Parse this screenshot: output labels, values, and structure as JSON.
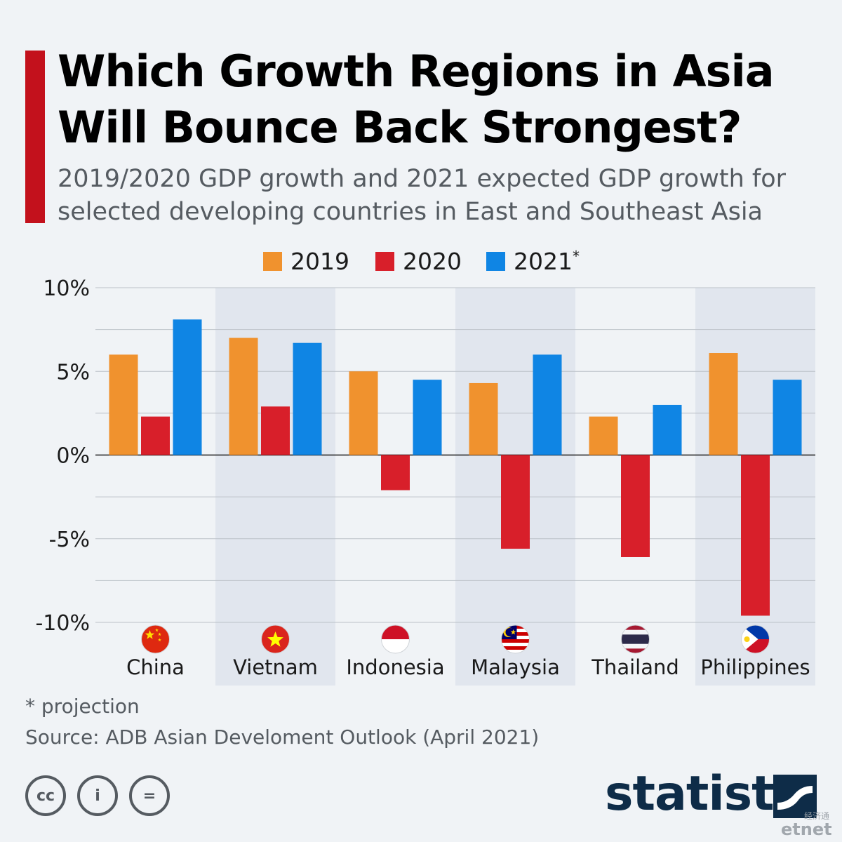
{
  "title": "Which Growth Regions in Asia Will Bounce Back Strongest?",
  "subtitle": "2019/2020 GDP growth and 2021 expected GDP growth for selected developing countries in East and Southeast Asia",
  "legend": [
    {
      "label": "2019",
      "color": "#f0922e"
    },
    {
      "label": "2020",
      "color": "#d81f2a"
    },
    {
      "label": "2021",
      "sup": "*",
      "color": "#0f85e4"
    }
  ],
  "chart_data": {
    "type": "bar",
    "categories": [
      "China",
      "Vietnam",
      "Indonesia",
      "Malaysia",
      "Thailand",
      "Philippines"
    ],
    "series": [
      {
        "name": "2019",
        "color": "#f0922e",
        "values": [
          6.0,
          7.0,
          5.0,
          4.3,
          2.3,
          6.1
        ]
      },
      {
        "name": "2020",
        "color": "#d81f2a",
        "values": [
          2.3,
          2.9,
          -2.1,
          -5.6,
          -6.1,
          -9.6
        ]
      },
      {
        "name": "2021*",
        "color": "#0f85e4",
        "values": [
          8.1,
          6.7,
          4.5,
          6.0,
          3.0,
          4.5
        ]
      }
    ],
    "ylim": [
      -10,
      10
    ],
    "yticks": [
      -10,
      -5,
      0,
      5,
      10
    ],
    "ytick_labels": [
      "-10%",
      "-5%",
      "0%",
      "5%",
      "10%"
    ],
    "flags": [
      "china-flag-icon",
      "vietnam-flag-icon",
      "indonesia-flag-icon",
      "malaysia-flag-icon",
      "thailand-flag-icon",
      "philippines-flag-icon"
    ]
  },
  "footnote": "* projection",
  "source": "Source: ADB Asian Develoment Outlook (April 2021)",
  "license_icons": [
    "cc-icon",
    "attribution-icon",
    "no-derivatives-icon"
  ],
  "license_glyphs": [
    "cc",
    "i",
    "="
  ],
  "brand": "statista",
  "watermark": {
    "text": "etnet",
    "cn": "经济通"
  }
}
